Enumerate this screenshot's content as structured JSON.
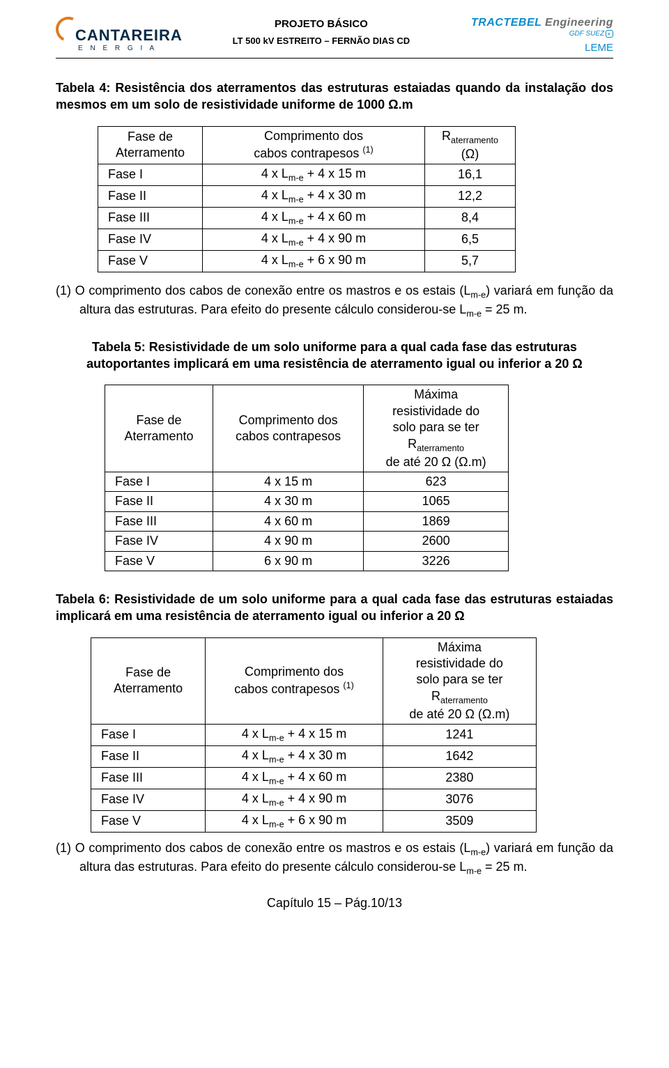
{
  "header": {
    "cantareira_name": "CANTAREIRA",
    "cantareira_sub": "E  N  E  R  G  I  A",
    "title1": "PROJETO BÁSICO",
    "title2": "LT 500 kV ESTREITO – FERNÃO DIAS CD",
    "tractebel_1": "TRACTEBEL",
    "tractebel_2": " Engineering",
    "gdf": "GDF SUEZ",
    "leme": "LEME"
  },
  "table4": {
    "caption": "Tabela 4: Resistência dos aterramentos das estruturas estaiadas quando da instalação dos mesmos em um solo de resistividade uniforme de 1000 Ω.m",
    "head_c1_l1": "Fase de",
    "head_c1_l2": "Aterramento",
    "head_c2_l1": "Comprimento dos",
    "head_c2_l2_pre": "cabos contrapesos ",
    "head_c2_sup": "(1)",
    "head_c3_l1_pre": "R",
    "head_c3_l1_sub": "aterramento",
    "head_c3_l2": "(Ω)",
    "rows": [
      {
        "c1": "Fase I",
        "c2_pre": "4 x L",
        "c2_sub": "m-e",
        "c2_post": " + 4 x 15 m",
        "c3": "16,1"
      },
      {
        "c1": "Fase II",
        "c2_pre": "4 x L",
        "c2_sub": "m-e",
        "c2_post": " + 4 x 30 m",
        "c3": "12,2"
      },
      {
        "c1": "Fase III",
        "c2_pre": "4 x L",
        "c2_sub": "m-e",
        "c2_post": " + 4 x 60 m",
        "c3": "8,4"
      },
      {
        "c1": "Fase IV",
        "c2_pre": "4 x L",
        "c2_sub": "m-e",
        "c2_post": " + 4 x 90 m",
        "c3": "6,5"
      },
      {
        "c1": "Fase V",
        "c2_pre": "4 x L",
        "c2_sub": "m-e",
        "c2_post": " + 6 x 90 m",
        "c3": "5,7"
      }
    ],
    "note_lead": "(1) ",
    "note_a": "O comprimento dos cabos de conexão entre os mastros e os estais (L",
    "note_sub": "m-e",
    "note_b": ") variará em função da altura das estruturas. Para efeito do presente cálculo considerou-se L",
    "note_c": " = 25 m."
  },
  "table5": {
    "caption": "Tabela 5: Resistividade de um solo uniforme para a qual cada fase das estruturas autoportantes implicará em uma resistência de aterramento igual ou inferior a 20 Ω",
    "head_c1_l1": "Fase de",
    "head_c1_l2": "Aterramento",
    "head_c2_l1": "Comprimento dos",
    "head_c2_l2": "cabos contrapesos",
    "head_c3_l1": "Máxima",
    "head_c3_l2": "resistividade do",
    "head_c3_l3": "solo para se ter",
    "head_c3_l4_pre": "R",
    "head_c3_l4_sub": "aterramento",
    "head_c3_l5": "de até 20 Ω (Ω.m)",
    "rows": [
      {
        "c1": "Fase I",
        "c2": "4 x 15 m",
        "c3": "623"
      },
      {
        "c1": "Fase II",
        "c2": "4 x 30 m",
        "c3": "1065"
      },
      {
        "c1": "Fase III",
        "c2": "4 x 60 m",
        "c3": "1869"
      },
      {
        "c1": "Fase IV",
        "c2": "4 x 90 m",
        "c3": "2600"
      },
      {
        "c1": "Fase V",
        "c2": "6 x 90 m",
        "c3": "3226"
      }
    ]
  },
  "table6": {
    "caption": "Tabela 6: Resistividade de um solo uniforme para a qual cada fase das estruturas estaiadas implicará em uma resistência de aterramento igual ou inferior a 20 Ω",
    "head_c1_l1": "Fase de",
    "head_c1_l2": "Aterramento",
    "head_c2_l1": "Comprimento dos",
    "head_c2_l2_pre": "cabos contrapesos ",
    "head_c2_sup": "(1)",
    "head_c3_l1": "Máxima",
    "head_c3_l2": "resistividade do",
    "head_c3_l3": "solo para se ter",
    "head_c3_l4_pre": "R",
    "head_c3_l4_sub": "aterramento",
    "head_c3_l5": "de até 20 Ω (Ω.m)",
    "rows": [
      {
        "c1": "Fase I",
        "c2_pre": "4 x L",
        "c2_sub": "m-e",
        "c2_post": " + 4 x 15 m",
        "c3": "1241"
      },
      {
        "c1": "Fase II",
        "c2_pre": "4 x L",
        "c2_sub": "m-e",
        "c2_post": " + 4 x 30 m",
        "c3": "1642"
      },
      {
        "c1": "Fase III",
        "c2_pre": "4 x L",
        "c2_sub": "m-e",
        "c2_post": " + 4 x 60 m",
        "c3": "2380"
      },
      {
        "c1": "Fase IV",
        "c2_pre": "4 x L",
        "c2_sub": "m-e",
        "c2_post": " + 4 x 90 m",
        "c3": "3076"
      },
      {
        "c1": "Fase V",
        "c2_pre": "4 x L",
        "c2_sub": "m-e",
        "c2_post": " + 6 x 90 m",
        "c3": "3509"
      }
    ],
    "note_lead": "(1) ",
    "note_a": "O comprimento dos cabos de conexão entre os mastros e os estais (L",
    "note_sub": "m-e",
    "note_b": ") variará em função da altura das estruturas. Para efeito do presente cálculo considerou-se L",
    "note_c": " = 25 m."
  },
  "footer": "Capítulo 15 – Pág.10/13"
}
